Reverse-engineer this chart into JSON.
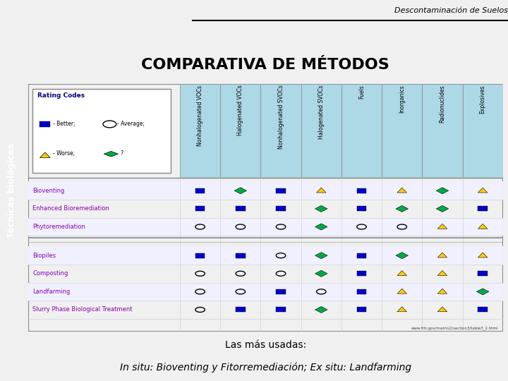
{
  "title_main": "Descontaminación de Suelos",
  "title_section": "Técnicas biológicas",
  "title_chart": "COMPARATIVA DE MÉTODOS",
  "columns": [
    "Nonhalogenated VOCs",
    "Halogenated VOCs",
    "Nonhalogenated SVOCs",
    "Halogenated SVOCs",
    "Fuels",
    "Inorganics",
    "Radionuclides",
    "Explosives"
  ],
  "insitu_methods": [
    "Bioventing",
    "Enhanced Bioremediation",
    "Phytoremediation"
  ],
  "exsitu_methods": [
    "Biopiles",
    "Composting",
    "Landfarming",
    "Slurry Phase Biological Treatment"
  ],
  "insitu_data": [
    [
      "B",
      "D",
      "B",
      "W",
      "B",
      "W",
      "D",
      "W"
    ],
    [
      "B",
      "B",
      "B",
      "D",
      "B",
      "D",
      "D",
      "B"
    ],
    [
      "A",
      "A",
      "A",
      "D",
      "A",
      "A",
      "W",
      "W"
    ]
  ],
  "exsitu_data": [
    [
      "B",
      "B",
      "A",
      "D",
      "B",
      "D",
      "W",
      "W"
    ],
    [
      "A",
      "A",
      "A",
      "D",
      "B",
      "W",
      "W",
      "B"
    ],
    [
      "A",
      "A",
      "B",
      "A",
      "B",
      "W",
      "W",
      "D"
    ],
    [
      "A",
      "B",
      "B",
      "D",
      "B",
      "W",
      "W",
      "B"
    ]
  ],
  "footer_text": "Las más usadas:",
  "footer_text2": "In situ: Bioventing y Fitorremediación; Ex situ: Landfarming",
  "url_text": "www.frtr.gov/matrix2/section3/table3_2.html",
  "rating_legend": "Rating Codes",
  "method_color": "#8800AA",
  "sidebar_color": "#4B3A00",
  "blue_square": "#0000CC",
  "green_diamond": "#00AA44",
  "yellow_triangle": "#FFCC00"
}
